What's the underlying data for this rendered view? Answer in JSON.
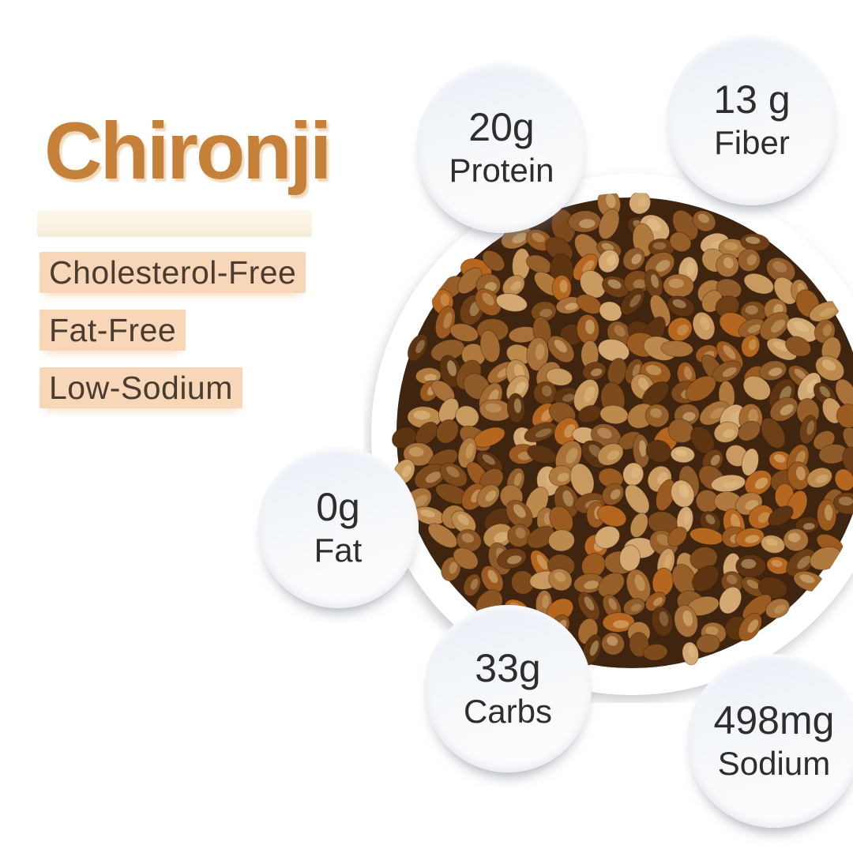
{
  "title": {
    "text": "Chironji",
    "color": "#c5813a"
  },
  "tags": [
    {
      "label": "Cholesterol-Free"
    },
    {
      "label": "Fat-Free"
    },
    {
      "label": "Low-Sodium"
    }
  ],
  "tag_style": {
    "background": "#f8d6b8",
    "text_color": "#4a3c31"
  },
  "badges": [
    {
      "value": "20g",
      "label": "Protein"
    },
    {
      "value": "13 g",
      "label": "Fiber"
    },
    {
      "value": "0g",
      "label": "Fat"
    },
    {
      "value": "33g",
      "label": "Carbs"
    },
    {
      "value": "498mg",
      "label": "Sodium"
    }
  ],
  "badge_style": {
    "background": "#f1f4f8",
    "text_color": "#2e2e2e"
  },
  "image": {
    "alt": "bowl-of-chironji-seeds",
    "bowl_color": "#ffffff",
    "gap_color": "#3f2410",
    "highlight_color": "#e6c992",
    "seed_palette": [
      "#6e3f16",
      "#7d4a1c",
      "#8a5423",
      "#965f2a",
      "#a36a31",
      "#b07a3e",
      "#bd8a4d",
      "#c99a5f",
      "#a9713a",
      "#8f5b2b",
      "#5d3412",
      "#d4a873",
      "#b5671f",
      "#9a5a20"
    ]
  }
}
